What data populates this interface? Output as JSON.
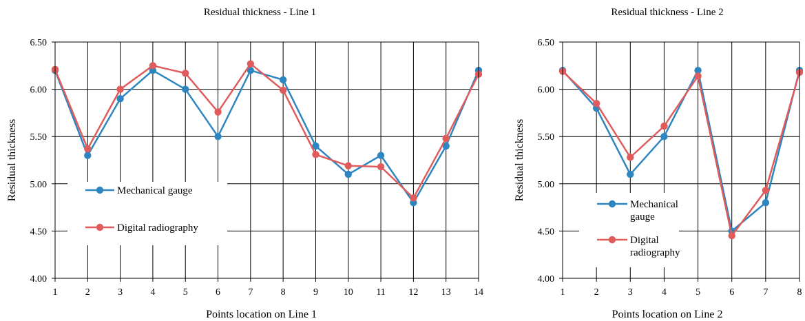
{
  "colors": {
    "mechanical": "#2e86c1",
    "digital": "#e05c5c"
  },
  "chart_data": [
    {
      "type": "line",
      "title": "Residual thickness - Line 1",
      "xlabel": "Points location on Line 1",
      "ylabel": "Residual thickness",
      "categories": [
        "1",
        "2",
        "3",
        "4",
        "5",
        "6",
        "7",
        "8",
        "9",
        "10",
        "11",
        "12",
        "13",
        "14"
      ],
      "ylim": [
        4.0,
        6.5
      ],
      "yticks": [
        "4.00",
        "4.50",
        "5.00",
        "5.50",
        "6.00",
        "6.50"
      ],
      "grid": true,
      "legend_placement": "lower-left",
      "series": [
        {
          "name": "Mechanical gauge",
          "values": [
            6.2,
            5.3,
            5.9,
            6.2,
            6.0,
            5.5,
            6.2,
            6.1,
            5.4,
            5.1,
            5.3,
            4.8,
            5.4,
            6.2
          ]
        },
        {
          "name": "Digital radiography",
          "values": [
            6.21,
            5.37,
            6.0,
            6.25,
            6.17,
            5.76,
            6.27,
            5.99,
            5.31,
            5.19,
            5.18,
            4.85,
            5.48,
            6.16
          ]
        }
      ]
    },
    {
      "type": "line",
      "title": "Residual thickness - Line 2",
      "xlabel": "Points location on Line 2",
      "ylabel": "Residual thickness",
      "categories": [
        "1",
        "2",
        "3",
        "4",
        "5",
        "6",
        "7",
        "8"
      ],
      "ylim": [
        4.0,
        6.5
      ],
      "yticks": [
        "4.00",
        "4.50",
        "5.00",
        "5.50",
        "6.00",
        "6.50"
      ],
      "grid": true,
      "legend_placement": "lower-left",
      "series": [
        {
          "name": "Mechanical gauge",
          "values": [
            6.2,
            5.8,
            5.1,
            5.5,
            6.2,
            4.5,
            4.8,
            6.2
          ]
        },
        {
          "name": "Digital radiography",
          "values": [
            6.19,
            5.85,
            5.28,
            5.61,
            6.14,
            4.45,
            4.93,
            6.18
          ]
        }
      ]
    }
  ]
}
